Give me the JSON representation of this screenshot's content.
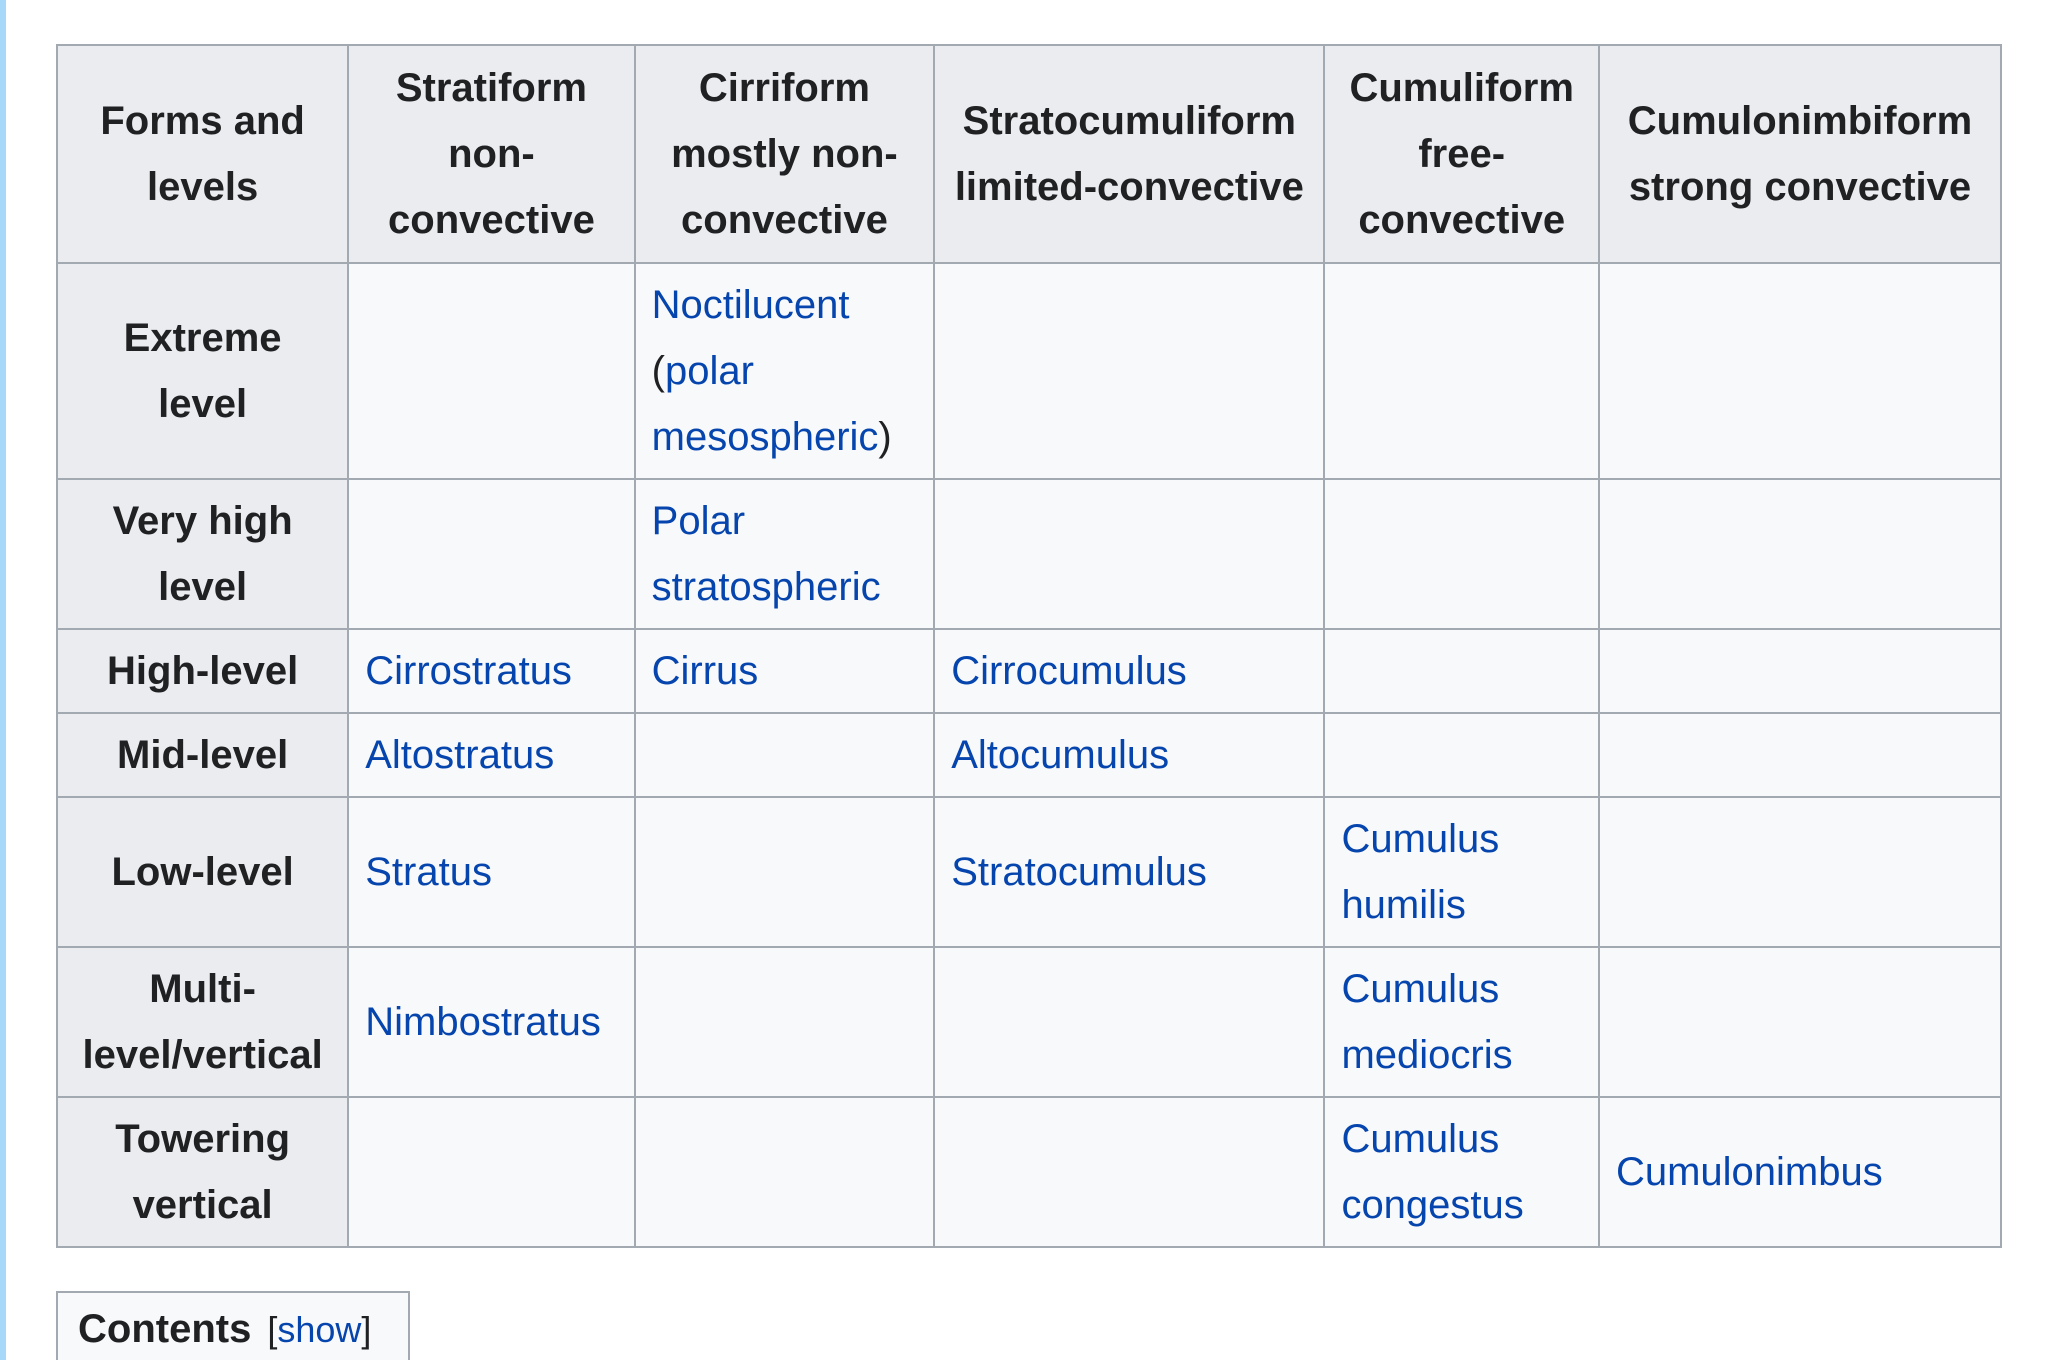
{
  "table": {
    "headers": {
      "forms": "Forms and levels",
      "stratiform": "Stratiform non-convective",
      "cirriform": "Cirriform mostly non-convective",
      "stratocumuliform": "Stratocumuliform limited-convective",
      "cumuliform": "Cumuliform free-convective",
      "cumulonimbiform": "Cumulonimbiform strong convective"
    },
    "rows": {
      "extreme": {
        "level": "Extreme level",
        "cirriform_link1": "Noctilucent",
        "cirriform_paren_open": "(",
        "cirriform_link2": "polar mesospheric",
        "cirriform_paren_close": ")"
      },
      "very_high": {
        "level": "Very high level",
        "cirriform": "Polar stratospheric"
      },
      "high": {
        "level": "High-level",
        "stratiform": "Cirrostratus",
        "cirriform": "Cirrus",
        "stratocumuliform": "Cirrocumulus"
      },
      "mid": {
        "level": "Mid-level",
        "stratiform": "Altostratus",
        "stratocumuliform": "Altocumulus"
      },
      "low": {
        "level": "Low-level",
        "stratiform": "Stratus",
        "stratocumuliform": "Stratocumulus",
        "cumuliform": "Cumulus humilis"
      },
      "multi": {
        "level": "Multi-level/vertical",
        "stratiform": "Nimbostratus",
        "cumuliform": "Cumulus mediocris"
      },
      "towering": {
        "level": "Towering vertical",
        "cumuliform": "Cumulus congestus",
        "cumulonimbiform": "Cumulonimbus"
      }
    }
  },
  "toc": {
    "title": "Contents",
    "toggle_open": "[",
    "toggle_label": "show",
    "toggle_close": "]"
  },
  "colors": {
    "link": "#0645ad",
    "header_bg": "#eaecf0",
    "cell_bg": "#f8f9fa",
    "border": "#a2a9b1",
    "left_rule": "#a7d7f9"
  }
}
